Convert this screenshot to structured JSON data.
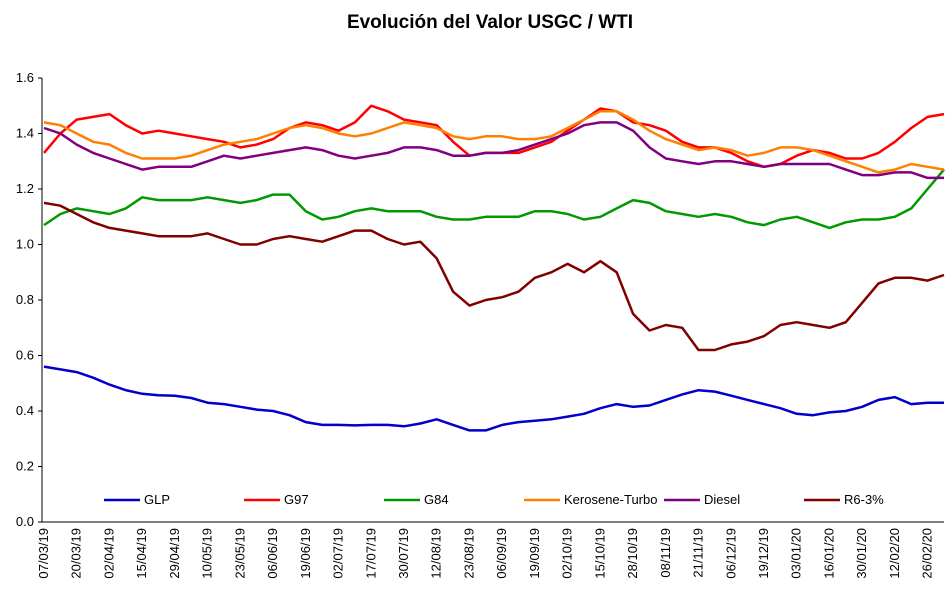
{
  "chart_data": {
    "type": "line",
    "title": "Evolución del Valor USGC / WTI",
    "categories": [
      "07/03/19",
      null,
      "20/03/19",
      null,
      "02/04/19",
      null,
      "15/04/19",
      null,
      "29/04/19",
      null,
      "10/05/19",
      null,
      "23/05/19",
      null,
      "06/06/19",
      null,
      "19/06/19",
      null,
      "02/07/19",
      null,
      "17/07/19",
      null,
      "30/07/19",
      null,
      "12/08/19",
      null,
      "23/08/19",
      null,
      "06/09/19",
      null,
      "19/09/19",
      null,
      "02/10/19",
      null,
      "15/10/19",
      null,
      "28/10/19",
      null,
      "08/11/19",
      null,
      "21/11/19",
      null,
      "06/12/19",
      null,
      "19/12/19",
      null,
      "03/01/20",
      null,
      "16/01/20",
      null,
      "30/01/20",
      null,
      "12/02/20",
      null,
      "26/02/20",
      null
    ],
    "series": [
      {
        "name": "GLP",
        "color": "#0000cc",
        "values": [
          0.56,
          0.55,
          0.54,
          0.52,
          0.495,
          0.475,
          0.462,
          0.457,
          0.455,
          0.447,
          0.43,
          0.425,
          0.415,
          0.405,
          0.4,
          0.385,
          0.36,
          0.35,
          0.35,
          0.348,
          0.35,
          0.35,
          0.345,
          0.355,
          0.37,
          0.35,
          0.33,
          0.33,
          0.35,
          0.36,
          0.365,
          0.37,
          0.38,
          0.39,
          0.41,
          0.425,
          0.415,
          0.42,
          0.44,
          0.46,
          0.475,
          0.47,
          0.455,
          0.44,
          0.425,
          0.41,
          0.39,
          0.385,
          0.395,
          0.4,
          0.415,
          0.44,
          0.45,
          0.425,
          0.43,
          0.43
        ]
      },
      {
        "name": "G97",
        "color": "#ff0000",
        "values": [
          1.33,
          1.4,
          1.45,
          1.46,
          1.47,
          1.43,
          1.4,
          1.41,
          1.4,
          1.39,
          1.38,
          1.37,
          1.35,
          1.36,
          1.38,
          1.42,
          1.44,
          1.43,
          1.41,
          1.44,
          1.5,
          1.48,
          1.45,
          1.44,
          1.43,
          1.37,
          1.32,
          1.33,
          1.33,
          1.33,
          1.35,
          1.37,
          1.41,
          1.45,
          1.49,
          1.48,
          1.44,
          1.43,
          1.41,
          1.37,
          1.35,
          1.35,
          1.33,
          1.3,
          1.28,
          1.29,
          1.32,
          1.34,
          1.33,
          1.31,
          1.31,
          1.33,
          1.37,
          1.42,
          1.46,
          1.47
        ]
      },
      {
        "name": "G84",
        "color": "#009900",
        "values": [
          1.07,
          1.11,
          1.13,
          1.12,
          1.11,
          1.13,
          1.17,
          1.16,
          1.16,
          1.16,
          1.17,
          1.16,
          1.15,
          1.16,
          1.18,
          1.18,
          1.12,
          1.09,
          1.1,
          1.12,
          1.13,
          1.12,
          1.12,
          1.12,
          1.1,
          1.09,
          1.09,
          1.1,
          1.1,
          1.1,
          1.12,
          1.12,
          1.11,
          1.09,
          1.1,
          1.13,
          1.16,
          1.15,
          1.12,
          1.11,
          1.1,
          1.11,
          1.1,
          1.08,
          1.07,
          1.09,
          1.1,
          1.08,
          1.06,
          1.08,
          1.09,
          1.09,
          1.1,
          1.13,
          1.2,
          1.27
        ]
      },
      {
        "name": "Kerosene-Turbo",
        "color": "#ff8000",
        "values": [
          1.44,
          1.43,
          1.4,
          1.37,
          1.36,
          1.33,
          1.31,
          1.31,
          1.31,
          1.32,
          1.34,
          1.36,
          1.37,
          1.38,
          1.4,
          1.42,
          1.43,
          1.42,
          1.4,
          1.39,
          1.4,
          1.42,
          1.44,
          1.43,
          1.42,
          1.39,
          1.38,
          1.39,
          1.39,
          1.38,
          1.38,
          1.39,
          1.42,
          1.45,
          1.48,
          1.48,
          1.45,
          1.41,
          1.38,
          1.36,
          1.34,
          1.35,
          1.34,
          1.32,
          1.33,
          1.35,
          1.35,
          1.34,
          1.32,
          1.3,
          1.28,
          1.26,
          1.27,
          1.29,
          1.28,
          1.27
        ]
      },
      {
        "name": "Diesel",
        "color": "#800080",
        "values": [
          1.42,
          1.4,
          1.36,
          1.33,
          1.31,
          1.29,
          1.27,
          1.28,
          1.28,
          1.28,
          1.3,
          1.32,
          1.31,
          1.32,
          1.33,
          1.34,
          1.35,
          1.34,
          1.32,
          1.31,
          1.32,
          1.33,
          1.35,
          1.35,
          1.34,
          1.32,
          1.32,
          1.33,
          1.33,
          1.34,
          1.36,
          1.38,
          1.4,
          1.43,
          1.44,
          1.44,
          1.41,
          1.35,
          1.31,
          1.3,
          1.29,
          1.3,
          1.3,
          1.29,
          1.28,
          1.29,
          1.29,
          1.29,
          1.29,
          1.27,
          1.25,
          1.25,
          1.26,
          1.26,
          1.24,
          1.24
        ]
      },
      {
        "name": "R6-3%",
        "color": "#800000",
        "values": [
          1.15,
          1.14,
          1.11,
          1.08,
          1.06,
          1.05,
          1.04,
          1.03,
          1.03,
          1.03,
          1.04,
          1.02,
          1.0,
          1.0,
          1.02,
          1.03,
          1.02,
          1.01,
          1.03,
          1.05,
          1.05,
          1.02,
          1.0,
          1.01,
          0.95,
          0.83,
          0.78,
          0.8,
          0.81,
          0.83,
          0.88,
          0.9,
          0.93,
          0.9,
          0.94,
          0.9,
          0.75,
          0.69,
          0.71,
          0.7,
          0.62,
          0.62,
          0.64,
          0.65,
          0.67,
          0.71,
          0.72,
          0.71,
          0.7,
          0.72,
          0.79,
          0.86,
          0.88,
          0.88,
          0.87,
          0.89
        ]
      }
    ],
    "ylim": [
      0,
      1.6
    ],
    "yticks": [
      {
        "value": 0,
        "label": "0.0"
      },
      0.2,
      0.4,
      0.6,
      0.8,
      {
        "value": 1,
        "label": "1.0"
      },
      1.2,
      1.4,
      1.6
    ],
    "grid": false,
    "legend": "bottom"
  }
}
